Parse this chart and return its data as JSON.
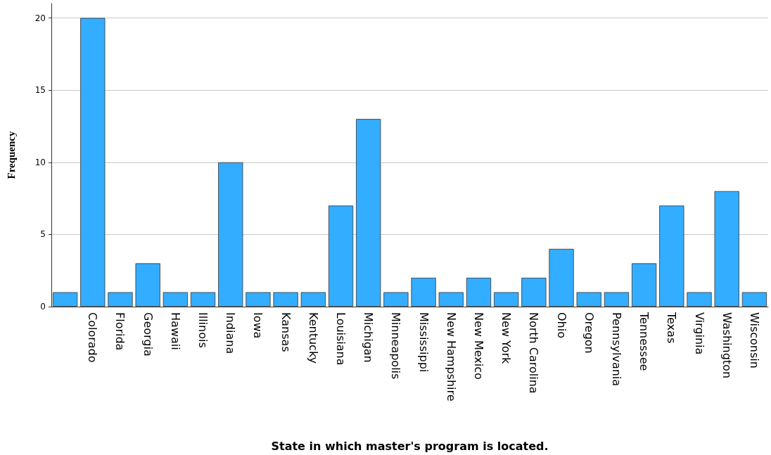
{
  "chart_data": {
    "type": "bar",
    "xlabel": "State in which master's program is located.",
    "ylabel": "Frequency",
    "categories": [
      null,
      "Colorado",
      "Florida",
      "Georgia",
      "Hawaii",
      "Illinois",
      "Indiana",
      "Iowa",
      "Kansas",
      "Kentucky",
      "Louisiana",
      "Michigan",
      "Minneapolis",
      "Mississippi",
      "New Hampshire",
      "New Mexico",
      "New York",
      "North Carolina",
      "Ohio",
      "Oregon",
      "Pennsylvania",
      "Tennessee",
      "Texas",
      "Virginia",
      "Washington",
      "Wisconsin"
    ],
    "values": [
      1,
      20,
      1,
      3,
      1,
      1,
      10,
      1,
      1,
      1,
      7,
      13,
      1,
      2,
      1,
      2,
      1,
      2,
      4,
      1,
      1,
      3,
      7,
      1,
      8,
      1
    ],
    "color": "#33adff",
    "ylim": [
      0,
      21
    ],
    "yticks": [
      0,
      5,
      10,
      15,
      20
    ],
    "grid": "y"
  }
}
